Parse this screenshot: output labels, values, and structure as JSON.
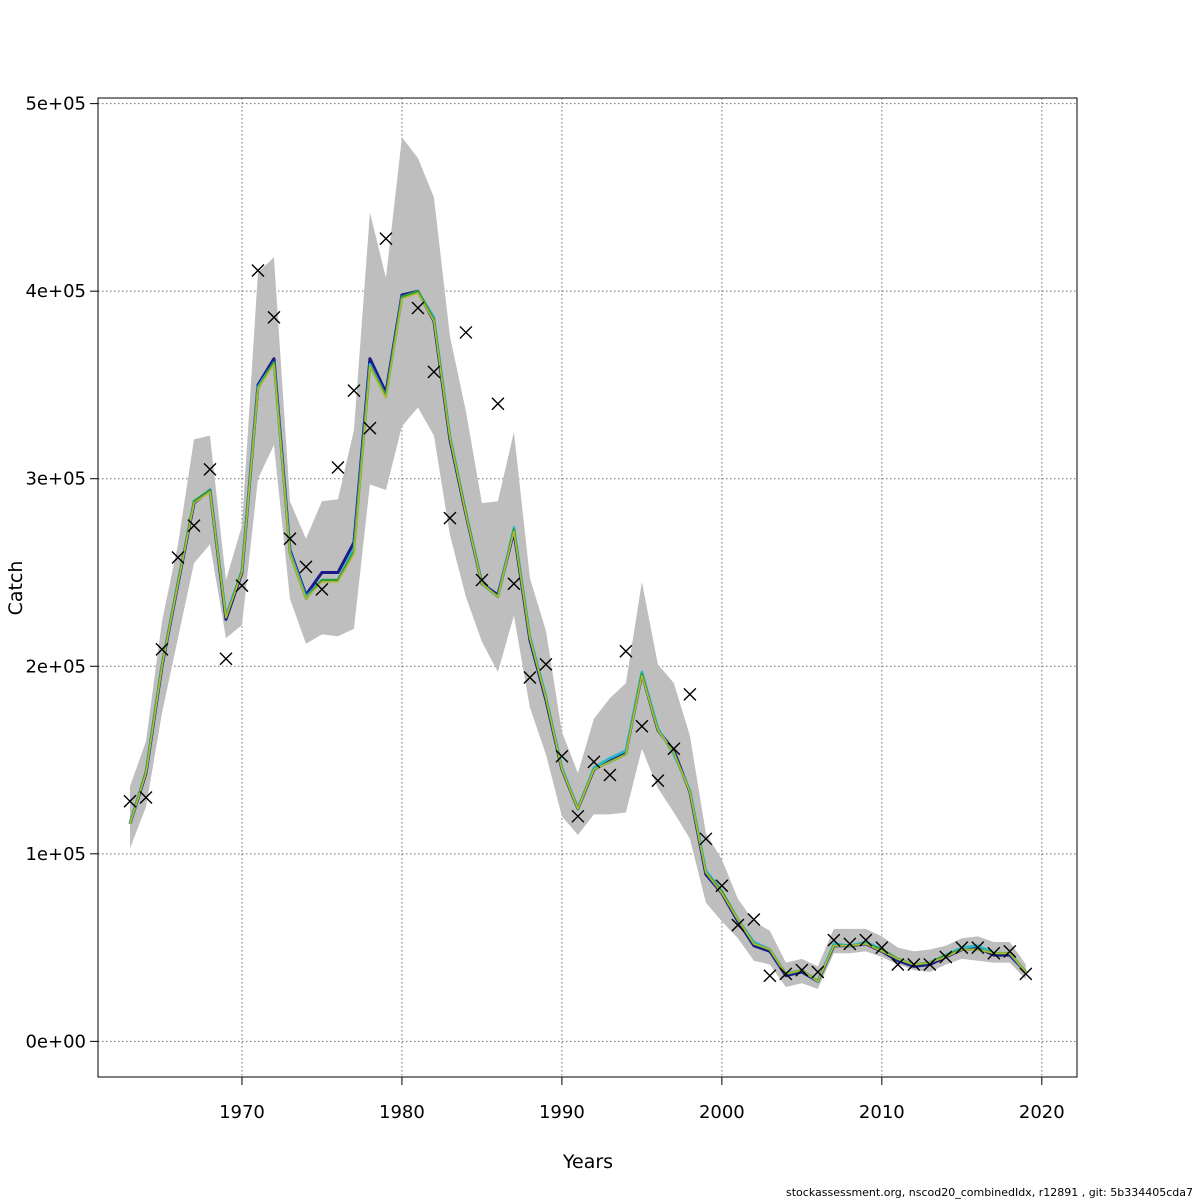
{
  "chart_data": {
    "type": "line",
    "title": "",
    "xlabel": "Years",
    "ylabel": "Catch",
    "xlim": [
      1961,
      2022.2
    ],
    "ylim": [
      -19000,
      503000
    ],
    "grid": true,
    "x_ticks": [
      1970,
      1980,
      1990,
      2000,
      2010,
      2020
    ],
    "x_tick_labels": [
      "1970",
      "1980",
      "1990",
      "2000",
      "2010",
      "2020"
    ],
    "y_ticks": [
      0,
      100000,
      200000,
      300000,
      400000,
      500000
    ],
    "y_tick_labels": [
      "0e+00",
      "1e+05",
      "2e+05",
      "3e+05",
      "4e+05",
      "5e+05"
    ],
    "years": [
      1963,
      1964,
      1965,
      1966,
      1967,
      1968,
      1969,
      1970,
      1971,
      1972,
      1973,
      1974,
      1975,
      1976,
      1977,
      1978,
      1979,
      1980,
      1981,
      1982,
      1983,
      1984,
      1985,
      1986,
      1987,
      1988,
      1989,
      1990,
      1991,
      1992,
      1993,
      1994,
      1995,
      1996,
      1997,
      1998,
      1999,
      2000,
      2001,
      2002,
      2003,
      2004,
      2005,
      2006,
      2007,
      2008,
      2009,
      2010,
      2011,
      2012,
      2013,
      2014,
      2015,
      2016,
      2017,
      2018,
      2019
    ],
    "band": {
      "lower": [
        103000,
        125000,
        175000,
        215000,
        255000,
        265000,
        215000,
        222000,
        300000,
        318000,
        236000,
        212000,
        217000,
        216000,
        220000,
        297000,
        294000,
        328000,
        338000,
        323000,
        270000,
        237000,
        213000,
        197000,
        227000,
        178000,
        153000,
        120000,
        110000,
        121000,
        121000,
        122000,
        156000,
        135000,
        122000,
        108000,
        74000,
        64000,
        55000,
        43000,
        41000,
        29000,
        31000,
        28000,
        47000,
        47000,
        48000,
        45000,
        41000,
        38000,
        37000,
        41000,
        44000,
        43000,
        42000,
        42000,
        33000
      ],
      "upper": [
        136000,
        160000,
        224000,
        265000,
        321000,
        323000,
        246000,
        275000,
        410000,
        418000,
        288000,
        268000,
        288000,
        289000,
        326000,
        442000,
        407000,
        482000,
        471000,
        450000,
        376000,
        336000,
        287000,
        288000,
        325000,
        247000,
        219000,
        165000,
        143000,
        172000,
        183000,
        191000,
        245000,
        201000,
        191000,
        163000,
        111000,
        97000,
        76000,
        64000,
        59000,
        42000,
        44000,
        40000,
        60000,
        60000,
        60000,
        56000,
        50000,
        48000,
        49000,
        51000,
        55000,
        56000,
        53000,
        53000,
        41000
      ]
    },
    "series": [
      {
        "color": "#1a1a8a",
        "values": [
          116000,
          143000,
          200000,
          244000,
          287000,
          294000,
          225000,
          250000,
          350000,
          364000,
          262000,
          238000,
          250000,
          250000,
          266000,
          364000,
          346000,
          398000,
          400000,
          384000,
          321000,
          281000,
          244000,
          238000,
          272000,
          214000,
          182000,
          145000,
          124000,
          145000,
          150000,
          154000,
          196000,
          166000,
          155000,
          133000,
          89000,
          79000,
          64000,
          51000,
          48000,
          35000,
          37000,
          32000,
          51000,
          51000,
          52000,
          48000,
          43000,
          40000,
          41000,
          45000,
          49000,
          50000,
          46000,
          46000,
          37000
        ]
      },
      {
        "color": "#29b8c9",
        "values": [
          116000,
          144000,
          201000,
          245000,
          288000,
          294000,
          227000,
          251000,
          349000,
          362000,
          261000,
          237000,
          246000,
          246000,
          263000,
          361000,
          344000,
          397000,
          400000,
          386000,
          323000,
          282000,
          244000,
          237000,
          274000,
          216000,
          184000,
          146000,
          124000,
          146000,
          151000,
          155000,
          197000,
          167000,
          153000,
          134000,
          91000,
          80000,
          65000,
          53000,
          49000,
          36000,
          38000,
          32000,
          52000,
          51000,
          53000,
          49000,
          44000,
          41000,
          42000,
          46000,
          50000,
          51000,
          47000,
          47000,
          37000
        ]
      },
      {
        "color": "#2e9a3a",
        "values": [
          116000,
          144000,
          201000,
          245000,
          288000,
          294000,
          226000,
          251000,
          348000,
          362000,
          260000,
          236000,
          246000,
          246000,
          261000,
          360000,
          344000,
          397000,
          400000,
          385000,
          322000,
          282000,
          244000,
          237000,
          273000,
          215000,
          183000,
          145000,
          124000,
          145000,
          149000,
          153000,
          196000,
          166000,
          154000,
          133000,
          90000,
          80000,
          65000,
          52000,
          49000,
          36000,
          38000,
          32000,
          51000,
          51000,
          52000,
          49000,
          44000,
          41000,
          42000,
          46000,
          49000,
          49000,
          47000,
          47000,
          37000
        ]
      },
      {
        "color": "#b5b82a",
        "values": [
          116000,
          143000,
          200000,
          244000,
          287000,
          293000,
          226000,
          250000,
          348000,
          361000,
          260000,
          236000,
          245000,
          245000,
          260000,
          360000,
          343000,
          396000,
          399000,
          384000,
          322000,
          281000,
          244000,
          237000,
          272000,
          215000,
          183000,
          145000,
          124000,
          145000,
          149000,
          153000,
          195000,
          166000,
          154000,
          133000,
          90000,
          79000,
          65000,
          52000,
          49000,
          36000,
          38000,
          32000,
          51000,
          51000,
          52000,
          48000,
          44000,
          41000,
          42000,
          45000,
          49000,
          49000,
          47000,
          47000,
          37000
        ]
      }
    ],
    "observed": [
      128000,
      130000,
      209000,
      258000,
      275000,
      305000,
      204000,
      243000,
      411000,
      386000,
      268000,
      253000,
      241000,
      306000,
      347000,
      327000,
      428000,
      null,
      391000,
      357000,
      279000,
      378000,
      246000,
      340000,
      244000,
      194000,
      201000,
      152000,
      120000,
      149000,
      142000,
      208000,
      168000,
      139000,
      156000,
      185000,
      108000,
      83000,
      62000,
      65000,
      35000,
      36000,
      38000,
      37000,
      54000,
      52000,
      54000,
      50000,
      41000,
      41000,
      41000,
      45000,
      50000,
      50000,
      47000,
      48000,
      36000
    ]
  },
  "footer": {
    "text": "stockassessment.org, nscod20_combinedIdx, r12891 , git: 5b334405cda7"
  }
}
